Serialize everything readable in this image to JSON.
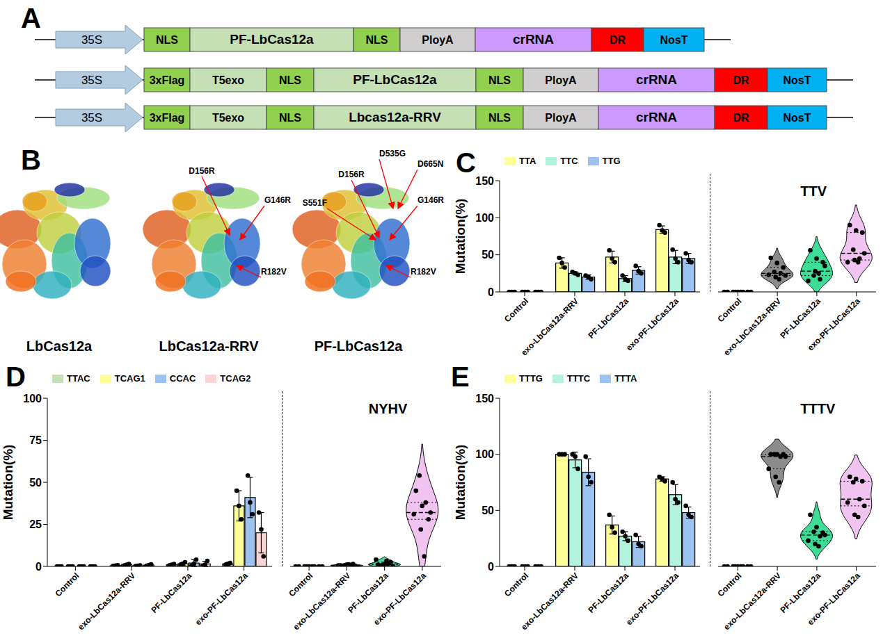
{
  "panel_labels": [
    "A",
    "B",
    "C",
    "D",
    "E"
  ],
  "constructs": [
    {
      "elements": [
        {
          "text": "35S",
          "color": "#b4cce0"
        },
        {
          "text": "NLS",
          "color": "#92d050"
        },
        {
          "text": "PF-LbCas12a",
          "color": "#c5e0b4"
        },
        {
          "text": "NLS",
          "color": "#92d050"
        },
        {
          "text": "PloyA",
          "color": "#d0cece"
        },
        {
          "text": "crRNA",
          "color": "#cc99ff"
        },
        {
          "text": "DR",
          "color": "#ff0000"
        },
        {
          "text": "NosT",
          "color": "#00b0f0"
        }
      ]
    },
    {
      "elements": [
        {
          "text": "35S",
          "color": "#b4cce0"
        },
        {
          "text": "3xFlag",
          "color": "#92d050"
        },
        {
          "text": "T5exo",
          "color": "#c5e0b4"
        },
        {
          "text": "NLS",
          "color": "#92d050"
        },
        {
          "text": "PF-LbCas12a",
          "color": "#c5e0b4"
        },
        {
          "text": "NLS",
          "color": "#92d050"
        },
        {
          "text": "PloyA",
          "color": "#d0cece"
        },
        {
          "text": "crRNA",
          "color": "#cc99ff"
        },
        {
          "text": "DR",
          "color": "#ff0000"
        },
        {
          "text": "NosT",
          "color": "#00b0f0"
        }
      ]
    },
    {
      "elements": [
        {
          "text": "35S",
          "color": "#b4cce0"
        },
        {
          "text": "3xFlag",
          "color": "#92d050"
        },
        {
          "text": "T5exo",
          "color": "#c5e0b4"
        },
        {
          "text": "NLS",
          "color": "#92d050"
        },
        {
          "text": "Lbcas12a-RRV",
          "color": "#c5e0b4"
        },
        {
          "text": "NLS",
          "color": "#92d050"
        },
        {
          "text": "PloyA",
          "color": "#d0cece"
        },
        {
          "text": "crRNA",
          "color": "#cc99ff"
        },
        {
          "text": "DR",
          "color": "#ff0000"
        },
        {
          "text": "NosT",
          "color": "#00b0f0"
        }
      ]
    }
  ],
  "structures": [
    {
      "name": "LbCas12a",
      "mutations": []
    },
    {
      "name": "LbCas12a-RRV",
      "mutations": [
        "D156R",
        "G146R",
        "R182V"
      ]
    },
    {
      "name": "PF-LbCas12a",
      "mutations": [
        "S551F",
        "D156R",
        "D535G",
        "D665N",
        "G146R",
        "R182V"
      ]
    }
  ],
  "chart_data": [
    {
      "type": "bar",
      "ylabel": "Mutation(%)",
      "ylim": [
        0,
        150
      ],
      "yticks": [
        0,
        50,
        100,
        150
      ],
      "legend": "top-left",
      "categories": [
        "Control",
        "exo-LbCas12a-RRV",
        "PF-LbCas12a",
        "exo-PF-LbCas12a"
      ],
      "series": [
        {
          "name": "TTA",
          "color": "#ffff99",
          "values": [
            0,
            39,
            47,
            84
          ],
          "errors": [
            0,
            7,
            8,
            5
          ],
          "points": [
            [
              0,
              0,
              0
            ],
            [
              46,
              39,
              33
            ],
            [
              56,
              45,
              40
            ],
            [
              90,
              83,
              80
            ]
          ]
        },
        {
          "name": "TTC",
          "color": "#b3f2dc",
          "values": [
            0,
            25,
            18,
            47
          ],
          "errors": [
            0,
            2,
            4,
            9
          ],
          "points": [
            [
              0,
              0,
              0
            ],
            [
              27,
              25,
              23
            ],
            [
              22,
              17,
              15
            ],
            [
              57,
              45,
              40
            ]
          ]
        },
        {
          "name": "TTG",
          "color": "#9cc3f0",
          "values": [
            0,
            20,
            29,
            45
          ],
          "errors": [
            0,
            3,
            5,
            7
          ],
          "points": [
            [
              0,
              0,
              0
            ],
            [
              22,
              20,
              17
            ],
            [
              35,
              28,
              25
            ],
            [
              52,
              43,
              40
            ]
          ]
        }
      ],
      "violin": {
        "title": "TTV",
        "categories": [
          "Control",
          "exo-LbCas12a-RRV",
          "PF-LbCas12a",
          "exo-PF-LbCas12a"
        ],
        "colors": [
          "#000000",
          "#8c8c8c",
          "#3ddc97",
          "#f0c3f0"
        ],
        "points": [
          [
            0,
            0,
            0,
            0,
            0,
            0,
            0,
            0,
            0
          ],
          [
            46,
            39,
            33,
            27,
            25,
            23,
            22,
            20,
            17
          ],
          [
            56,
            45,
            40,
            22,
            17,
            15,
            35,
            28,
            25
          ],
          [
            90,
            83,
            80,
            57,
            45,
            40,
            52,
            43,
            40
          ]
        ]
      }
    },
    {
      "type": "bar",
      "ylabel": "Mutation(%)",
      "ylim": [
        0,
        100
      ],
      "yticks": [
        0,
        25,
        50,
        75,
        100
      ],
      "legend": "top-left",
      "categories": [
        "Control",
        "exo-LbCas12a-RRV",
        "PF-LbCas12a",
        "exo-PF-LbCas12a"
      ],
      "series": [
        {
          "name": "TTAC",
          "color": "#c5e0b4",
          "values": [
            0,
            0.5,
            1,
            1.5
          ],
          "errors": [
            0,
            0.3,
            0.5,
            0.8
          ],
          "points": [
            [
              0,
              0,
              0
            ],
            [
              0.3,
              0.5,
              0.7
            ],
            [
              0.6,
              1,
              1.4
            ],
            [
              1,
              1.5,
              2
            ]
          ]
        },
        {
          "name": "TCAG1",
          "color": "#ffff99",
          "values": [
            0,
            1,
            1.5,
            36
          ],
          "errors": [
            0,
            0.4,
            0.8,
            9
          ],
          "points": [
            [
              0,
              0,
              0
            ],
            [
              0.6,
              1,
              1.4
            ],
            [
              1,
              1.5,
              2.5
            ],
            [
              45,
              36,
              28
            ]
          ]
        },
        {
          "name": "CCAC",
          "color": "#9cc3f0",
          "values": [
            0,
            0.4,
            2,
            41
          ],
          "errors": [
            0,
            0.3,
            2,
            12
          ],
          "points": [
            [
              0,
              0,
              0
            ],
            [
              0.2,
              0.4,
              0.6
            ],
            [
              0.5,
              1.5,
              4
            ],
            [
              54,
              38,
              31
            ]
          ]
        },
        {
          "name": "TCAG2",
          "color": "#fbd5d5",
          "values": [
            0,
            0.8,
            1.5,
            20
          ],
          "errors": [
            0,
            0.5,
            1.5,
            12
          ],
          "points": [
            [
              0,
              0,
              0
            ],
            [
              0.4,
              0.8,
              1.2
            ],
            [
              0.2,
              1,
              3.3
            ],
            [
              32,
              22,
              6
            ]
          ]
        }
      ],
      "violin": {
        "title": "NYHV",
        "categories": [
          "Control",
          "exo-LbCas12a-RRV",
          "PF-LbCas12a",
          "exo-PF-LbCas12a"
        ],
        "colors": [
          "#000000",
          "#8c8c8c",
          "#3ddc97",
          "#f0c3f0"
        ],
        "points": [
          [
            0,
            0,
            0,
            0,
            0,
            0,
            0,
            0,
            0
          ],
          [
            0.6,
            1,
            1.4,
            0.2,
            0.4,
            0.6,
            0.4,
            0.8,
            1.2
          ],
          [
            1,
            1.5,
            2.5,
            0.5,
            1.5,
            4,
            0.2,
            1,
            3.3
          ],
          [
            45,
            36,
            28,
            54,
            38,
            31,
            32,
            22,
            6
          ]
        ]
      }
    },
    {
      "type": "bar",
      "ylabel": "Mutation(%)",
      "ylim": [
        0,
        150
      ],
      "yticks": [
        0,
        50,
        100,
        150
      ],
      "legend": "top-left",
      "categories": [
        "Control",
        "exo-LbCas12a-RRV",
        "PF-LbCas12a",
        "exo-PF-LbCas12a"
      ],
      "series": [
        {
          "name": "TTTG",
          "color": "#ffff99",
          "values": [
            0,
            100,
            37,
            78
          ],
          "errors": [
            0,
            0,
            8,
            2
          ],
          "points": [
            [
              0,
              0,
              0
            ],
            [
              100,
              100,
              100
            ],
            [
              46,
              35,
              30
            ],
            [
              80,
              78,
              76
            ]
          ]
        },
        {
          "name": "TTTC",
          "color": "#b3f2dc",
          "values": [
            0,
            95,
            27,
            64
          ],
          "errors": [
            0,
            7,
            4,
            9
          ],
          "points": [
            [
              0,
              0,
              0
            ],
            [
              100,
              98,
              87
            ],
            [
              31,
              27,
              23
            ],
            [
              75,
              60,
              57
            ]
          ]
        },
        {
          "name": "TTTA",
          "color": "#9cc3f0",
          "values": [
            0,
            84,
            22,
            48
          ],
          "errors": [
            0,
            12,
            5,
            5
          ],
          "points": [
            [
              0,
              0,
              0
            ],
            [
              98,
              80,
              75
            ],
            [
              28,
              20,
              18
            ],
            [
              54,
              46,
              44
            ]
          ]
        }
      ],
      "violin": {
        "title": "TTTV",
        "categories": [
          "Control",
          "exo-LbCas12a-RRV",
          "PF-LbCas12a",
          "exo-PF-LbCas12a"
        ],
        "colors": [
          "#000000",
          "#8c8c8c",
          "#3ddc97",
          "#f0c3f0"
        ],
        "points": [
          [
            0,
            0,
            0,
            0,
            0,
            0,
            0,
            0,
            0
          ],
          [
            100,
            100,
            100,
            100,
            98,
            87,
            98,
            80,
            75
          ],
          [
            46,
            35,
            30,
            31,
            27,
            23,
            28,
            20,
            18
          ],
          [
            80,
            78,
            76,
            75,
            60,
            57,
            54,
            46,
            44
          ]
        ]
      }
    }
  ]
}
